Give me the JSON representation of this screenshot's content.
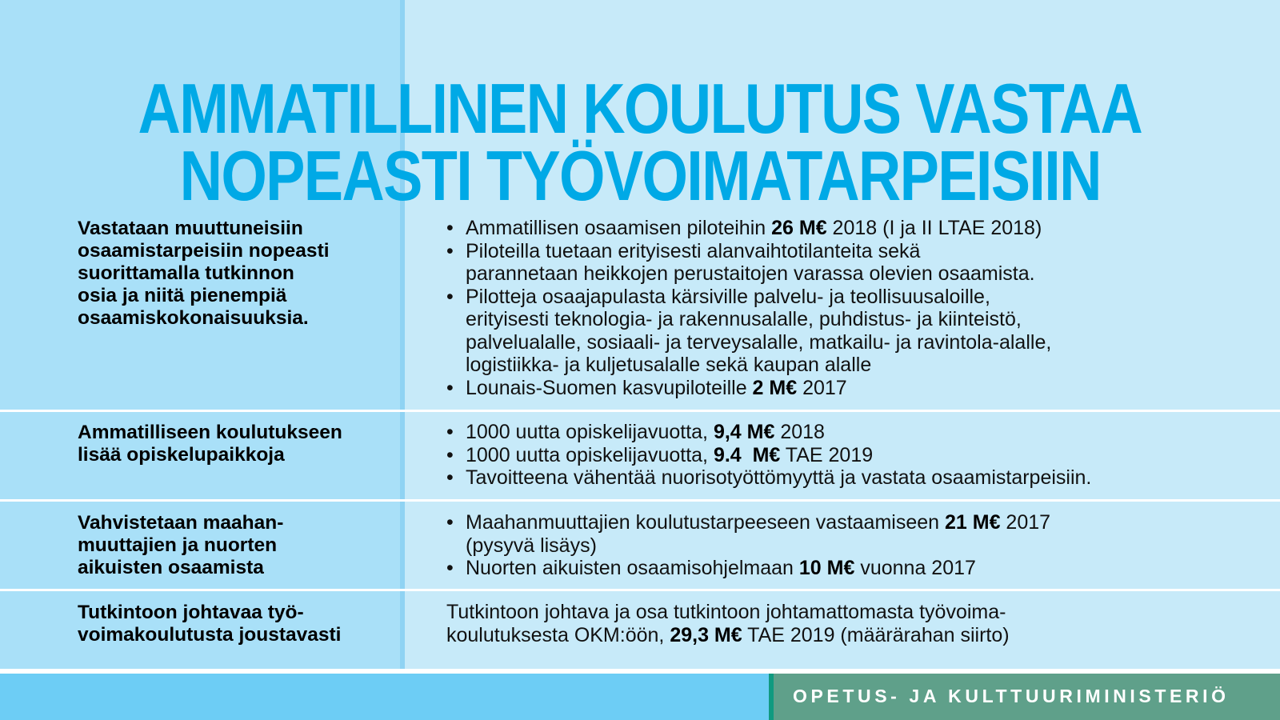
{
  "colors": {
    "title": "#00a9e6",
    "left_bg": "#a9e0f8",
    "right_bg": "#c7eaf9",
    "footer_blue": "#6dcdf5",
    "footer_green": "#5fa08a"
  },
  "title": {
    "line1": "AMMATILLINEN KOULUTUS VASTAA",
    "line2": "NOPEASTI TYÖVOIMATARPEISIIN"
  },
  "rows": [
    {
      "heading": "Vastataan muuttuneisiin\nosaamistarpeisiin nopeasti\nsuorittamalla tutkinnon\nosia ja  niitä pienempiä\nosaamiskokonaisuuksia.",
      "bullets": [
        {
          "pre": "Ammatillisen osaamisen piloteihin ",
          "bold": "26 M€",
          "post": " 2018 (I ja II LTAE 2018)"
        },
        {
          "pre": "Piloteilla tuetaan erityisesti alanvaihtotilanteita sekä\nparannetaan heikkojen perustaitojen varassa olevien osaamista.",
          "bold": "",
          "post": ""
        },
        {
          "pre": "Pilotteja osaajapulasta kärsiville palvelu- ja teollisuusaloille,\nerityisesti teknologia- ja rakennusalalle, puhdistus- ja kiinteistö,\npalvelualalle, sosiaali- ja terveysalalle, matkailu- ja ravintola-alalle,\nlogistiikka- ja kuljetusalalle sekä kaupan alalle",
          "bold": "",
          "post": ""
        },
        {
          "pre": "Lounais-Suomen kasvupiloteille ",
          "bold": "2 M€",
          "post": " 2017"
        }
      ]
    },
    {
      "heading": "Ammatilliseen koulutukseen\nlisää opiskelupaikkoja",
      "bullets": [
        {
          "pre": "1000 uutta opiskelijavuotta, ",
          "bold": "9,4 M€",
          "post": " 2018"
        },
        {
          "pre": "1000 uutta opiskelijavuotta, ",
          "bold": "9.4  M€",
          "post": " TAE 2019"
        },
        {
          "pre": "Tavoitteena vähentää nuorisotyöttömyyttä ja vastata osaamistarpeisiin.",
          "bold": "",
          "post": ""
        }
      ]
    },
    {
      "heading": "Vahvistetaan maahan-\nmuuttajien ja nuorten\naikuisten osaamista",
      "bullets": [
        {
          "pre": "Maahanmuuttajien koulutustarpeeseen vastaamiseen ",
          "bold": "21 M€",
          "post": " 2017\n(pysyvä lisäys)"
        },
        {
          "pre": "Nuorten aikuisten osaamisohjelmaan ",
          "bold": "10 M€",
          "post": " vuonna 2017"
        }
      ]
    },
    {
      "heading": "Tutkintoon johtavaa työ-\nvoimakoulutusta joustavasti",
      "text": {
        "pre": "Tutkintoon johtava ja osa tutkintoon johtamattomasta työvoima-\nkoulutuksesta OKM:öön, ",
        "bold": "29,3 M€",
        "post": " TAE 2019 (määrärahan siirto)"
      }
    }
  ],
  "bullet_char": "•",
  "footer": {
    "ministry": "OPETUS- JA KULTTUURIMINISTERIÖ"
  }
}
